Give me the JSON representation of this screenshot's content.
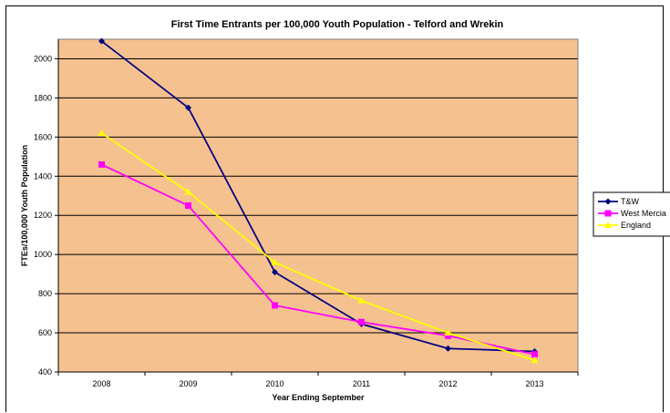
{
  "chart_data": {
    "type": "line",
    "title": "First Time Entrants per 100,000 Youth Population - Telford and Wrekin",
    "xlabel": "Year Ending September",
    "ylabel": "FTEs/100,000 Youth Population",
    "categories": [
      "2008",
      "2009",
      "2010",
      "2011",
      "2012",
      "2013"
    ],
    "ylim": [
      400,
      2100
    ],
    "yticks": [
      400,
      600,
      800,
      1000,
      1200,
      1400,
      1600,
      1800,
      2000
    ],
    "grid": true,
    "legend_position": "right",
    "plot_background": "#f5c18f",
    "series": [
      {
        "name": "T&W",
        "color": "#000080",
        "marker": "diamond",
        "values": [
          2090,
          1750,
          910,
          645,
          520,
          505
        ]
      },
      {
        "name": "West Mercia",
        "color": "#ff00ff",
        "marker": "square",
        "values": [
          1460,
          1250,
          740,
          655,
          585,
          490
        ]
      },
      {
        "name": "England",
        "color": "#ffff00",
        "marker": "triangle",
        "values": [
          1620,
          1320,
          960,
          765,
          600,
          460
        ]
      }
    ]
  }
}
